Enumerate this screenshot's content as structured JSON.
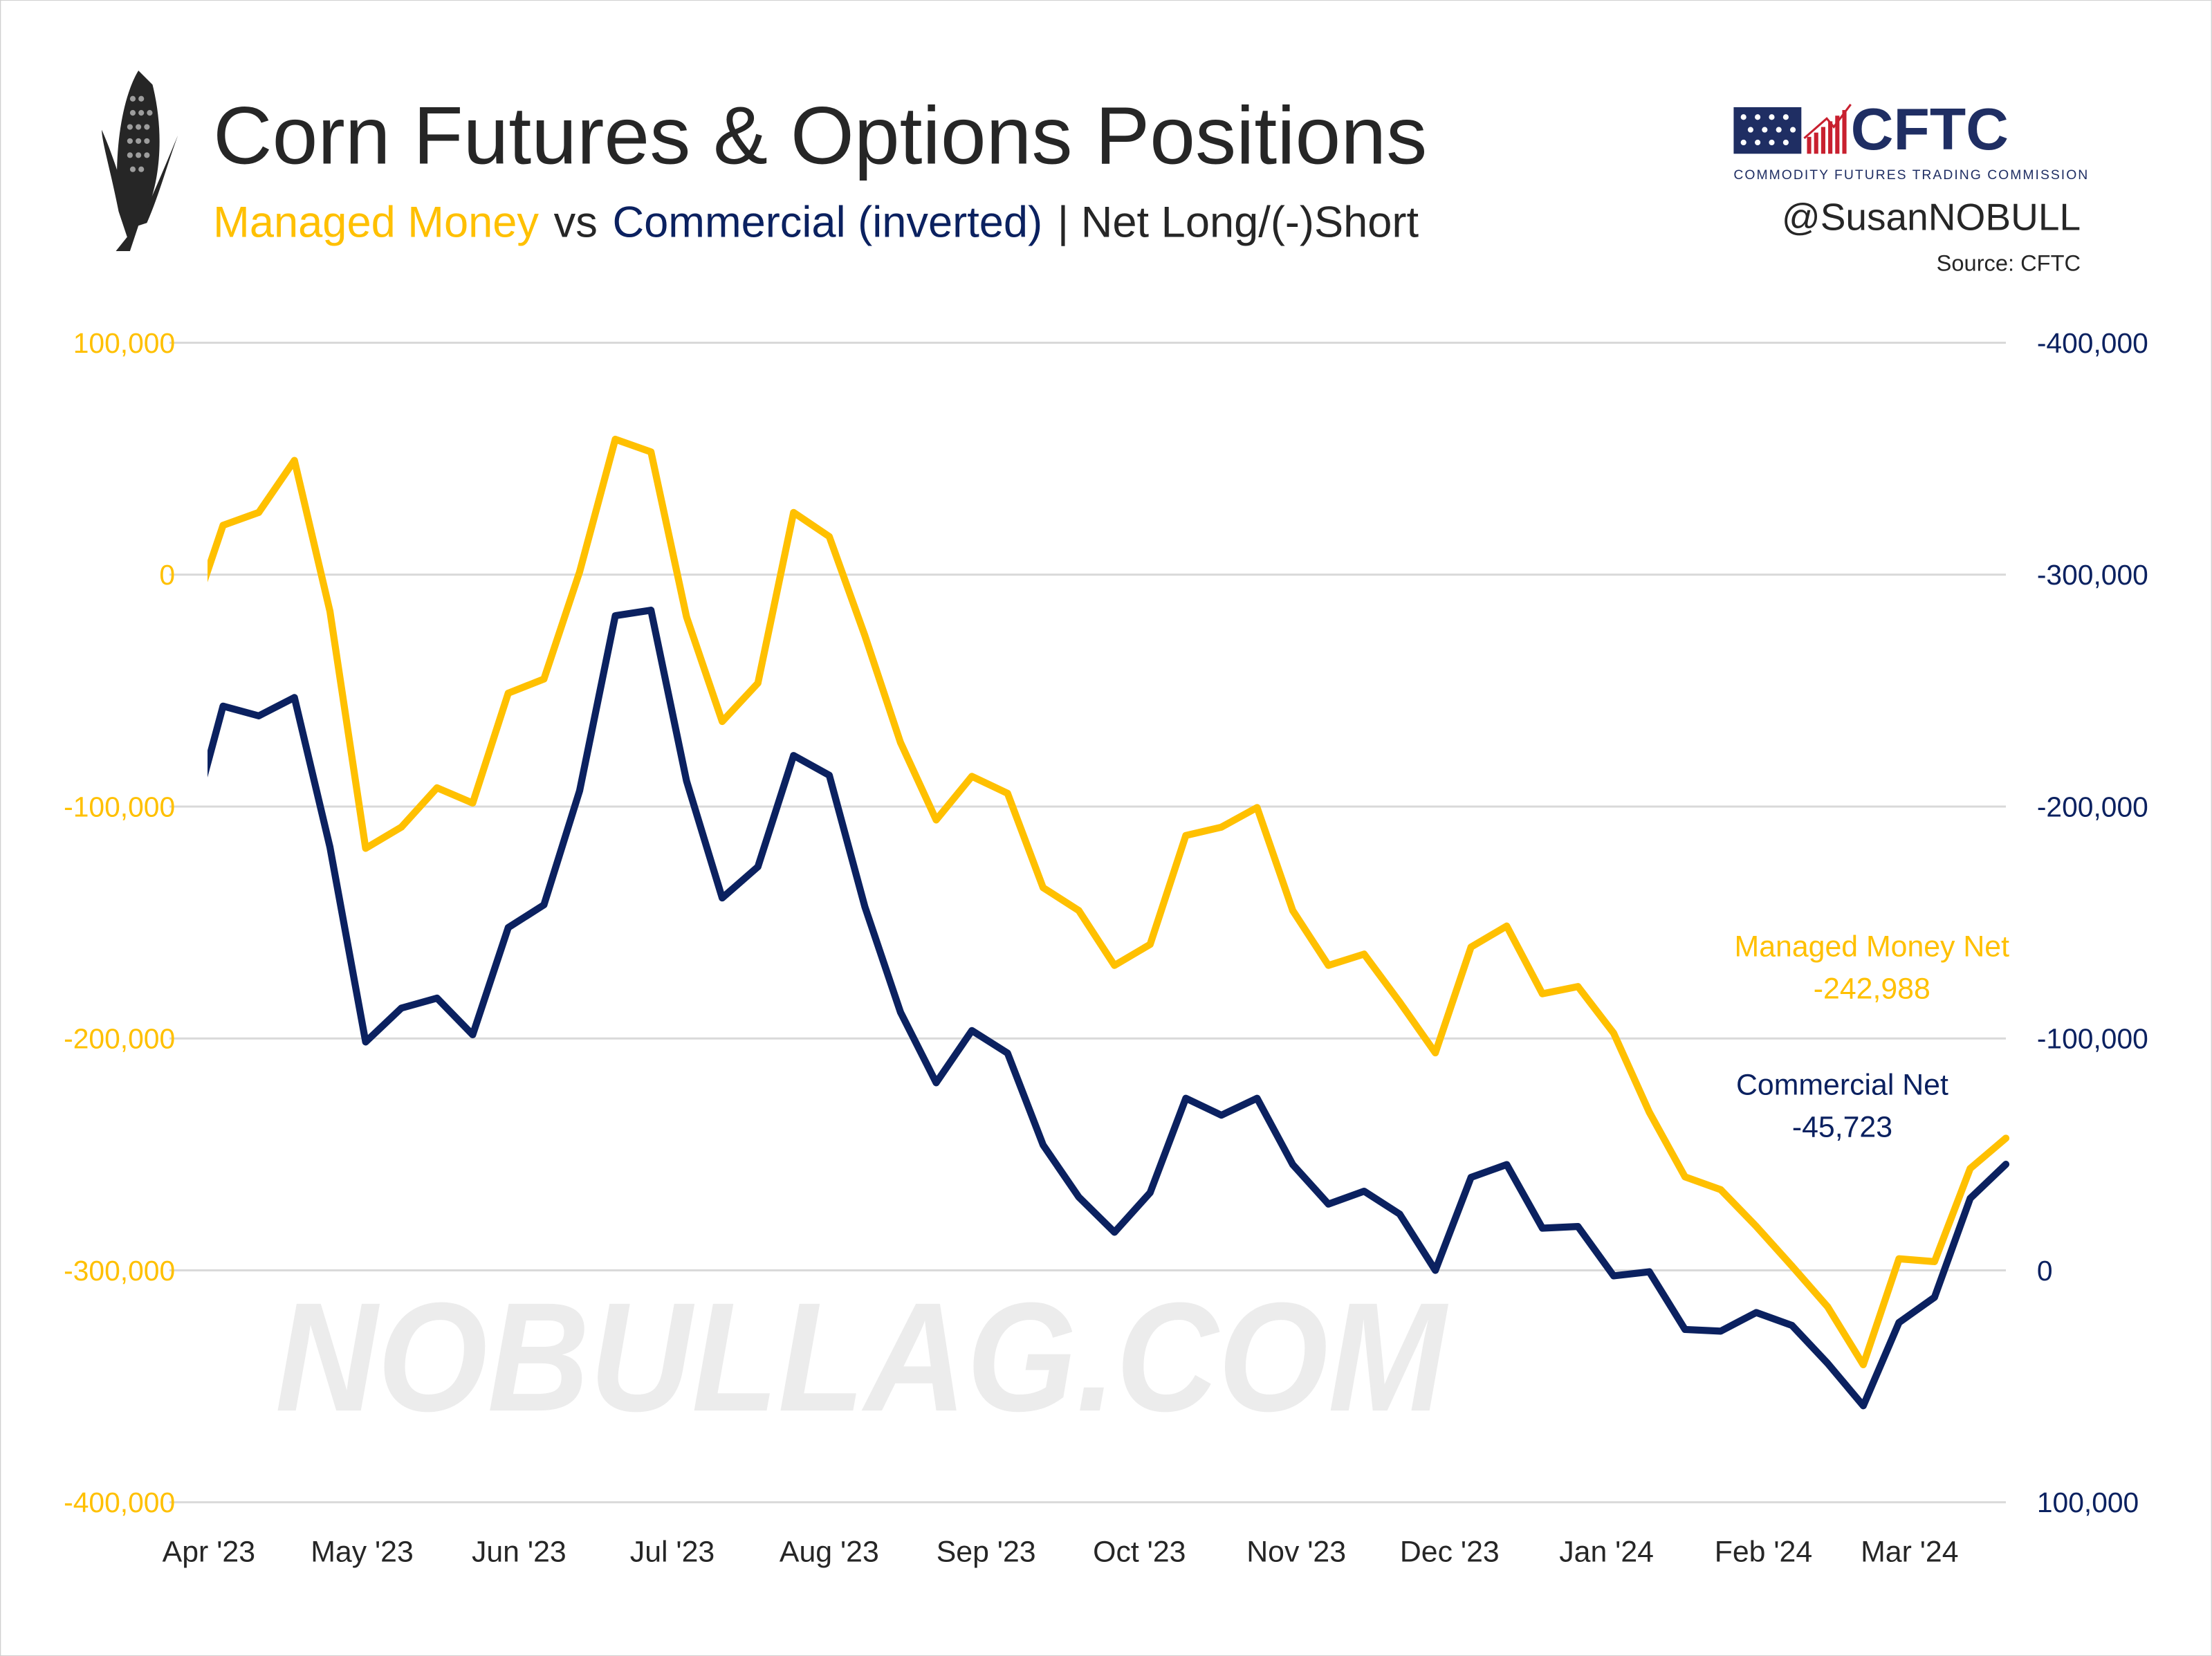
{
  "header": {
    "title": "Corn Futures & Options Positions",
    "subtitle_mm": "Managed Money",
    "subtitle_vs": " vs ",
    "subtitle_comm": "Commercial (inverted)",
    "subtitle_rest": " | Net Long/(-)Short",
    "handle": "@SusanNOBULL",
    "source": "Source: CFTC",
    "logo_text": "CFTC",
    "logo_subtext": "COMMODITY FUTURES TRADING COMMISSION"
  },
  "watermark": "NOBULLAG.COM",
  "colors": {
    "managed_money": "#FFC000",
    "commercial": "#0B2160",
    "grid": "#D9D9D9",
    "text": "#262626"
  },
  "chart_data": {
    "type": "line",
    "title": "Corn Futures & Options Positions",
    "x_unit": "week index (weekly CFTC reports, Apr 2023 - Mar 2024)",
    "x_range": [
      -0.4,
      50
    ],
    "x_ticks": [
      {
        "label": "Apr '23",
        "week": -0.4
      },
      {
        "label": "May '23",
        "week": 3.9
      },
      {
        "label": "Jun '23",
        "week": 8.3
      },
      {
        "label": "Jul '23",
        "week": 12.6
      },
      {
        "label": "Aug '23",
        "week": 17.0
      },
      {
        "label": "Sep '23",
        "week": 21.4
      },
      {
        "label": "Oct '23",
        "week": 25.7
      },
      {
        "label": "Nov '23",
        "week": 30.1
      },
      {
        "label": "Dec '23",
        "week": 34.4
      },
      {
        "label": "Jan '24",
        "week": 38.8
      },
      {
        "label": "Feb '24",
        "week": 43.2
      },
      {
        "label": "Mar '24",
        "week": 47.3
      }
    ],
    "y_left": {
      "range": [
        -400000,
        100000
      ],
      "ticks": [
        "100,000",
        "0",
        "-100,000",
        "-200,000",
        "-300,000",
        "-400,000"
      ],
      "tick_values": [
        100000,
        0,
        -100000,
        -200000,
        -300000,
        -400000
      ]
    },
    "y_right": {
      "range": [
        100000,
        -400000
      ],
      "inverted": true,
      "ticks": [
        "-400,000",
        "-300,000",
        "-200,000",
        "-100,000",
        "0",
        "100,000"
      ],
      "tick_values": [
        -400000,
        -300000,
        -200000,
        -100000,
        0,
        100000
      ]
    },
    "grid": true,
    "series": [
      {
        "name": "Managed Money Net",
        "axis": "left",
        "start_week": -1,
        "last_label": "-242,988",
        "values": [
          -24300,
          21300,
          26800,
          49300,
          -15800,
          -118000,
          -108900,
          -91900,
          -98500,
          -51100,
          -45000,
          1200,
          58400,
          52900,
          -18200,
          -63300,
          -46800,
          26800,
          16400,
          -26200,
          -72400,
          -105800,
          -87000,
          -94300,
          -135000,
          -144800,
          -168500,
          -159400,
          -112500,
          -108900,
          -100400,
          -144800,
          -168500,
          -163600,
          -184300,
          -206200,
          -160600,
          -151500,
          -180700,
          -177600,
          -197700,
          -231800,
          -259700,
          -265200,
          -281000,
          -298100,
          -315700,
          -340700,
          -295000,
          -296200,
          -256100,
          -242988
        ]
      },
      {
        "name": "Commercial Net",
        "axis": "right",
        "start_week": -1,
        "last_label": "-45,723",
        "values": [
          -186100,
          -243300,
          -239100,
          -247000,
          -182500,
          -98500,
          -113100,
          -117400,
          -101600,
          -147800,
          -157600,
          -206800,
          -282300,
          -284700,
          -211100,
          -160600,
          -174000,
          -222000,
          -213500,
          -156900,
          -111300,
          -80900,
          -103400,
          -93700,
          -54100,
          -31600,
          -16400,
          -33500,
          -74200,
          -66900,
          -74200,
          -45600,
          -28600,
          -34100,
          -24300,
          0,
          -40100,
          -45600,
          -18200,
          -18900,
          2400,
          600,
          25500,
          26200,
          18200,
          23700,
          40100,
          58400,
          22500,
          11600,
          -31000,
          -45723
        ]
      }
    ]
  }
}
